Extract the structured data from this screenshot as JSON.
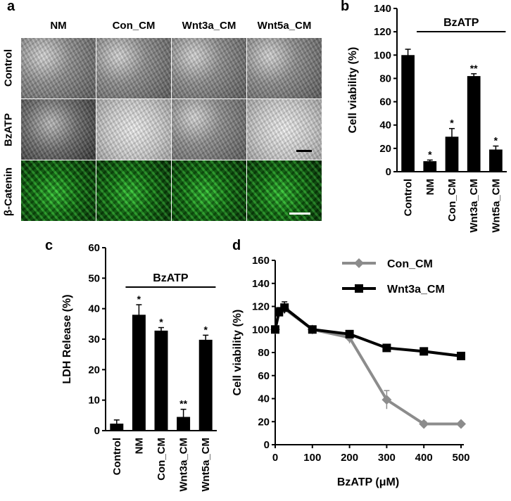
{
  "panels": {
    "a": {
      "letter": "a",
      "columns": [
        "NM",
        "Con_CM",
        "Wnt3a_CM",
        "Wnt5a_CM"
      ],
      "rows": [
        "Control",
        "BzATP",
        "β-Catenin"
      ]
    },
    "b": {
      "letter": "b"
    },
    "c": {
      "letter": "c"
    },
    "d": {
      "letter": "d"
    }
  },
  "colors": {
    "bar": "#000000",
    "con_cm": "#8c8c8c",
    "wnt3a_cm": "#000000",
    "scalebar_phase": "#000000",
    "scalebar_fluor": "#ffffff"
  },
  "chart_data": [
    {
      "id": "b",
      "type": "bar",
      "categories": [
        "Control",
        "NM",
        "Con_CM",
        "Wnt3a_CM",
        "Wnt5a_CM"
      ],
      "values": [
        100,
        9,
        30,
        82,
        19
      ],
      "errors": [
        5,
        1,
        7,
        2,
        3
      ],
      "annotations": [
        "",
        "*",
        "*",
        "**",
        "*"
      ],
      "group_label": "BzATP",
      "ylabel": "Cell viability (%)",
      "ylim": [
        0,
        140
      ],
      "yticks": [
        0,
        20,
        40,
        60,
        80,
        100,
        120,
        140
      ]
    },
    {
      "id": "c",
      "type": "bar",
      "categories": [
        "Control",
        "NM",
        "Con_CM",
        "Wnt3a_CM",
        "Wnt5a_CM"
      ],
      "values": [
        2.3,
        38,
        32.8,
        4.5,
        29.8
      ],
      "errors": [
        1.2,
        3.3,
        1,
        2.5,
        1.5
      ],
      "annotations": [
        "",
        "*",
        "*",
        "**",
        "*"
      ],
      "group_label": "BzATP",
      "ylabel": "LDH Release (%)",
      "ylim": [
        0,
        60
      ],
      "yticks": [
        0,
        10,
        20,
        30,
        40,
        50,
        60
      ]
    },
    {
      "id": "d",
      "type": "line",
      "xlabel": "BzATP (μM)",
      "ylabel": "Cell viability (%)",
      "xlim": [
        0,
        500
      ],
      "ylim": [
        0,
        160
      ],
      "xticks": [
        0,
        100,
        200,
        300,
        400,
        500
      ],
      "yticks": [
        0,
        20,
        40,
        60,
        80,
        100,
        120,
        140,
        160
      ],
      "legend_position": "top-right",
      "series": [
        {
          "name": "Con_CM",
          "marker": "diamond",
          "color": "#8c8c8c",
          "x": [
            0,
            10,
            25,
            100,
            200,
            300,
            400,
            500
          ],
          "y": [
            100,
            115,
            118,
            100,
            93,
            39,
            18,
            18
          ],
          "err": [
            0,
            3,
            3,
            3,
            5,
            8,
            2,
            1
          ]
        },
        {
          "name": "Wnt3a_CM",
          "marker": "square",
          "color": "#000000",
          "x": [
            0,
            10,
            25,
            100,
            200,
            300,
            400,
            500
          ],
          "y": [
            100,
            115,
            119,
            100,
            96,
            84,
            81,
            77
          ],
          "err": [
            0,
            4,
            5,
            2,
            3,
            2,
            2,
            2
          ]
        }
      ]
    }
  ]
}
